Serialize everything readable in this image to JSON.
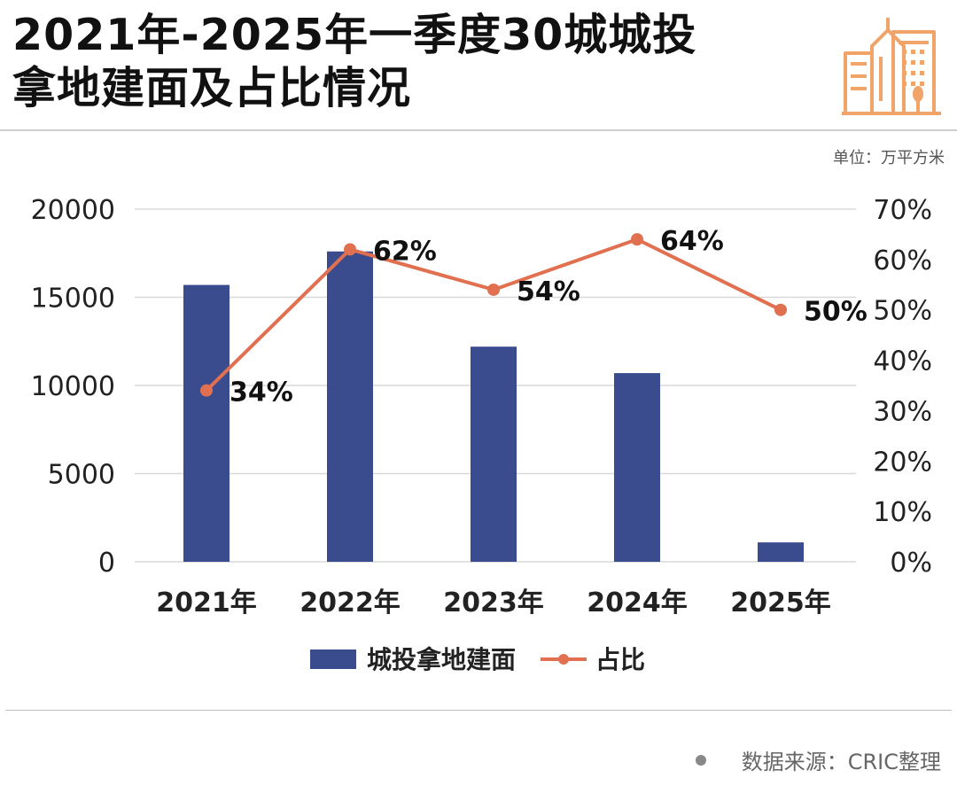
{
  "title": {
    "line1": "2021年-2025年一季度30城城投",
    "line2": "拿地建面及占比情况"
  },
  "unit": "单位：万平方米",
  "source": "数据来源：CRIC整理",
  "logo_icon": "city-buildings-icon",
  "colors": {
    "bar": "#3a4b8e",
    "line": "#e0704f",
    "grid": "#d9d9d9",
    "logo": "#f0a46a"
  },
  "chart_data": {
    "type": "bar",
    "categories": [
      "2021年",
      "2022年",
      "2023年",
      "2024年",
      "2025年"
    ],
    "series": [
      {
        "name": "城投拿地建面",
        "type": "bar",
        "axis": "left",
        "values": [
          15700,
          17600,
          12200,
          10700,
          1100
        ]
      },
      {
        "name": "占比",
        "type": "line",
        "axis": "right",
        "values": [
          34,
          62,
          54,
          64,
          50
        ],
        "labels": [
          "34%",
          "62%",
          "54%",
          "64%",
          "50%"
        ]
      }
    ],
    "y_left": {
      "min": 0,
      "max": 20000,
      "ticks": [
        "0",
        "5000",
        "10000",
        "15000",
        "20000"
      ]
    },
    "y_right": {
      "min": 0,
      "max": 70,
      "ticks": [
        "0%",
        "10%",
        "20%",
        "30%",
        "40%",
        "50%",
        "60%",
        "70%"
      ]
    },
    "grid": true,
    "legend": "bottom"
  }
}
